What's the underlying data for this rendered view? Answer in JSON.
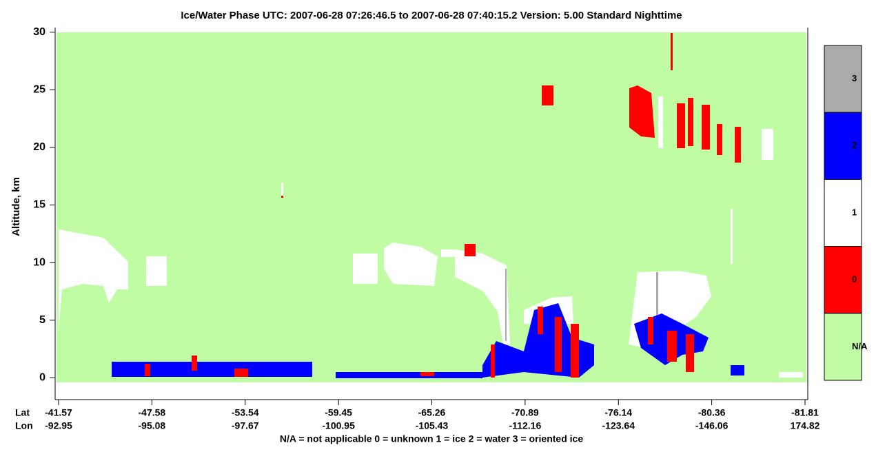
{
  "chart_data": {
    "type": "curtain",
    "title": "Ice/Water Phase    UTC:  2007-06-28   07:26:46.5  to  2007-06-28   07:40:15.2    Version: 5.00  Standard Nighttime",
    "y_label": "Altitude, km",
    "ylim": [
      -1.9,
      30.4
    ],
    "yticks": [
      0,
      5,
      10,
      15,
      20,
      25,
      30
    ],
    "x_row_labels": [
      "Lat",
      "Lon"
    ],
    "lat_ticks": [
      -41.57,
      -47.58,
      -53.54,
      -59.45,
      -65.26,
      -70.89,
      -76.14,
      -80.36,
      -81.81
    ],
    "lon_ticks": [
      -92.95,
      -95.08,
      -97.67,
      -100.95,
      -105.43,
      -112.16,
      -123.64,
      -146.06,
      174.82
    ],
    "background_color": "#c0fca4",
    "legend": [
      {
        "label": "3",
        "color": "#aaaaaa"
      },
      {
        "label": "2",
        "color": "#0000ff"
      },
      {
        "label": "1",
        "color": "#ffffff"
      },
      {
        "label": "0",
        "color": "#ff0000"
      },
      {
        "label": "N/A",
        "color": "#c0fca4"
      }
    ],
    "footnote": "N/A = not applicable     0 = unknown     1 = ice     2 = water     3 = oriented ice"
  }
}
